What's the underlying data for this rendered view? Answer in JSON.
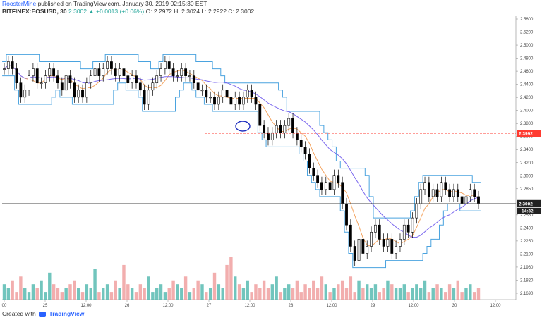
{
  "header": {
    "author": "RoosterMine",
    "published": "published on TradingView.com, January 30, 2019 02:15:30 EST",
    "symbol": "BITFINEX:EOSUSD, 30",
    "change": "2.3002 ▲ +0.0013 (+0.06%)",
    "ohlc": "O: 2.2972 H: 2.3024 L: 2.2922 C: 2.3002"
  },
  "footer": {
    "created_with": "Created with",
    "brand": "TradingView"
  },
  "price_labels": {
    "level": "2.3992",
    "last": "2.3002",
    "countdown": "14:32"
  },
  "colors": {
    "bull_candle": "#000000",
    "bear_candle": "#000000",
    "channel": "#4aa3df",
    "ma_fast": "#f4a460",
    "ma_slow": "#7b68ee",
    "level_line": "#ff3b30",
    "vol_up": "#4db6ac",
    "vol_down": "#ef9a9a"
  },
  "chart_data": {
    "type": "candlestick",
    "y_ticks": [
      "2.5600",
      "2.5200",
      "2.5000",
      "2.4800",
      "2.4600",
      "2.4400",
      "2.4200",
      "2.4000",
      "2.3800",
      "2.3600",
      "2.3400",
      "2.3200",
      "2.3000",
      "2.2850",
      "2.2700",
      "2.2550",
      "2.2400",
      "2.2250",
      "2.2100",
      "2.1960",
      "2.1820",
      "2.1690"
    ],
    "x_ticks": [
      "00",
      "25",
      "12:00",
      "26",
      "12:00",
      "27",
      "12:00",
      "28",
      "12:00",
      "29",
      "12:00",
      "30",
      "12:00"
    ],
    "ylim": [
      2.165,
      2.565
    ],
    "close_series": [
      2.49,
      2.5,
      2.49,
      2.47,
      2.45,
      2.46,
      2.48,
      2.49,
      2.47,
      2.47,
      2.48,
      2.49,
      2.48,
      2.47,
      2.46,
      2.48,
      2.47,
      2.45,
      2.46,
      2.45,
      2.47,
      2.48,
      2.49,
      2.48,
      2.49,
      2.5,
      2.49,
      2.48,
      2.49,
      2.48,
      2.47,
      2.48,
      2.47,
      2.46,
      2.44,
      2.46,
      2.47,
      2.48,
      2.49,
      2.5,
      2.49,
      2.48,
      2.48,
      2.49,
      2.48,
      2.48,
      2.47,
      2.46,
      2.46,
      2.45,
      2.45,
      2.44,
      2.45,
      2.46,
      2.45,
      2.44,
      2.45,
      2.44,
      2.45,
      2.46,
      2.45,
      2.44,
      2.41,
      2.4,
      2.39,
      2.4,
      2.41,
      2.4,
      2.41,
      2.42,
      2.4,
      2.39,
      2.38,
      2.37,
      2.35,
      2.34,
      2.33,
      2.32,
      2.33,
      2.32,
      2.34,
      2.33,
      2.3,
      2.27,
      2.24,
      2.22,
      2.25,
      2.23,
      2.24,
      2.26,
      2.27,
      2.25,
      2.24,
      2.25,
      2.23,
      2.24,
      2.25,
      2.27,
      2.26,
      2.28,
      2.3,
      2.32,
      2.33,
      2.31,
      2.32,
      2.31,
      2.33,
      2.32,
      2.31,
      2.32,
      2.31,
      2.3,
      2.31,
      2.32,
      2.31,
      2.3
    ],
    "volume_series": [
      4,
      3,
      5,
      2,
      6,
      3,
      2,
      4,
      3,
      5,
      2,
      7,
      4,
      3,
      2,
      3,
      4,
      5,
      3,
      2,
      4,
      3,
      8,
      2,
      3,
      4,
      2,
      5,
      3,
      9,
      4,
      3,
      2,
      4,
      3,
      6,
      2,
      3,
      4,
      2,
      3,
      5,
      4,
      3,
      6,
      2,
      3,
      5,
      4,
      2,
      3,
      7,
      4,
      3,
      9,
      11,
      6,
      4,
      3,
      5,
      2,
      4,
      3,
      5,
      3,
      4,
      6,
      2,
      3,
      4,
      3,
      5,
      2,
      4,
      3,
      5,
      3,
      6,
      4,
      2,
      3,
      4,
      5,
      3,
      6,
      2,
      5,
      3,
      4,
      3,
      4,
      2,
      3,
      5,
      4,
      3,
      3,
      4,
      2,
      3,
      4,
      3,
      5,
      2,
      3,
      4,
      3,
      2,
      4,
      3,
      5,
      2,
      3,
      4,
      2,
      3
    ],
    "level_line": 2.3992,
    "last_price": 2.3002
  }
}
